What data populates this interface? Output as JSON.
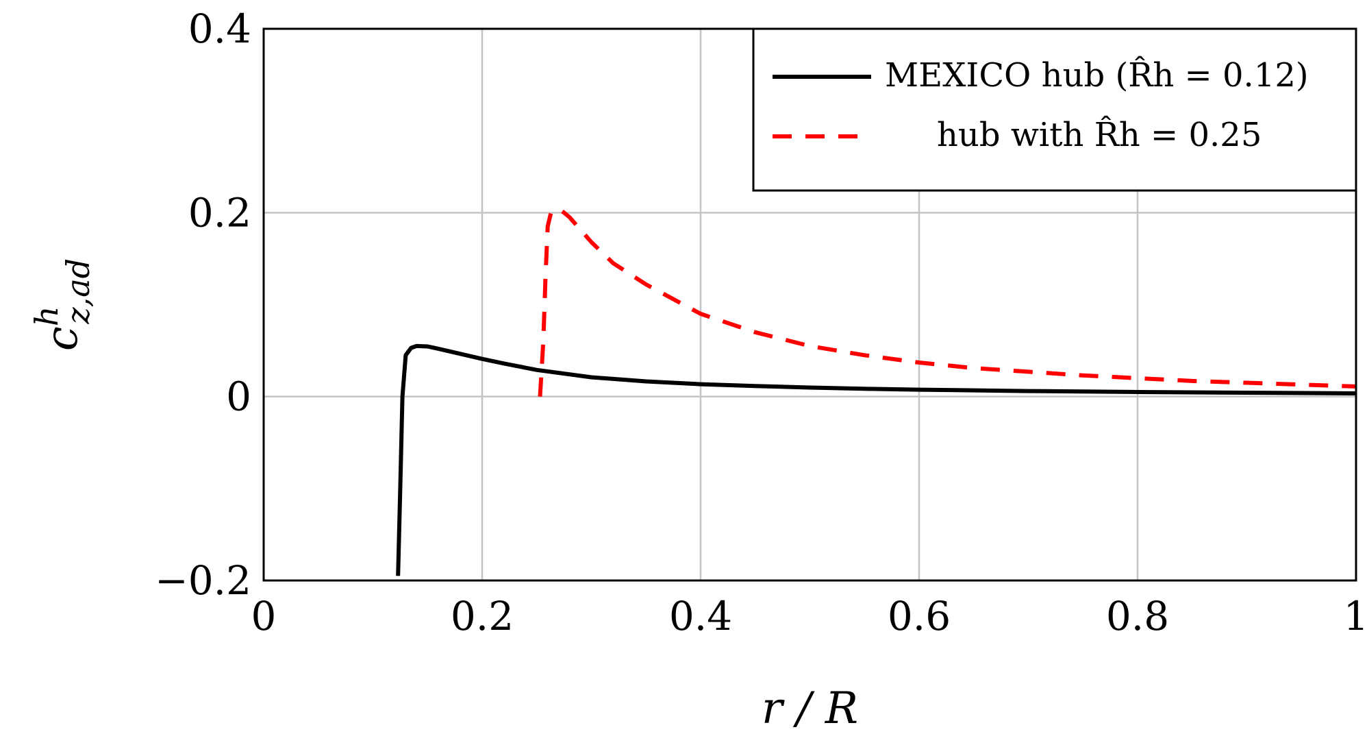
{
  "chart_data": {
    "type": "line",
    "xlabel": "r / R",
    "ylabel_base": "c",
    "ylabel_sup": "h",
    "ylabel_sub": "z,ad",
    "xlim": [
      0,
      1
    ],
    "ylim": [
      -0.2,
      0.4
    ],
    "xticks": [
      0,
      0.2,
      0.4,
      0.6,
      0.8,
      1
    ],
    "xtick_labels": [
      "0",
      "0.2",
      "0.4",
      "0.6",
      "0.8",
      "1"
    ],
    "yticks": [
      -0.2,
      0,
      0.2,
      0.4
    ],
    "ytick_labels": [
      "−0.2",
      "0",
      "0.2",
      "0.4"
    ],
    "grid": true,
    "legend_position": "top-right",
    "series": [
      {
        "name": "MEXICO hub (R̂h = 0.12)",
        "color": "#000000",
        "style": "solid",
        "x": [
          0.123,
          0.125,
          0.127,
          0.13,
          0.135,
          0.14,
          0.15,
          0.16,
          0.18,
          0.2,
          0.22,
          0.25,
          0.3,
          0.35,
          0.4,
          0.45,
          0.5,
          0.55,
          0.6,
          0.7,
          0.8,
          0.9,
          1.0
        ],
        "y": [
          -0.195,
          -0.1,
          0.0,
          0.045,
          0.053,
          0.055,
          0.0545,
          0.052,
          0.0465,
          0.041,
          0.036,
          0.029,
          0.021,
          0.0165,
          0.0135,
          0.0115,
          0.0098,
          0.0085,
          0.0075,
          0.006,
          0.005,
          0.0042,
          0.0035
        ]
      },
      {
        "name": "hub with R̂h = 0.25",
        "color": "#ff0000",
        "style": "dashed",
        "x": [
          0.253,
          0.256,
          0.258,
          0.26,
          0.263,
          0.267,
          0.27,
          0.275,
          0.28,
          0.3,
          0.32,
          0.35,
          0.4,
          0.45,
          0.5,
          0.55,
          0.6,
          0.65,
          0.7,
          0.75,
          0.8,
          0.85,
          0.9,
          0.95,
          1.0
        ],
        "y": [
          0.0,
          0.06,
          0.13,
          0.185,
          0.2,
          0.203,
          0.204,
          0.2,
          0.195,
          0.168,
          0.145,
          0.122,
          0.09,
          0.07,
          0.055,
          0.045,
          0.037,
          0.031,
          0.027,
          0.023,
          0.02,
          0.017,
          0.015,
          0.013,
          0.011
        ]
      }
    ]
  }
}
